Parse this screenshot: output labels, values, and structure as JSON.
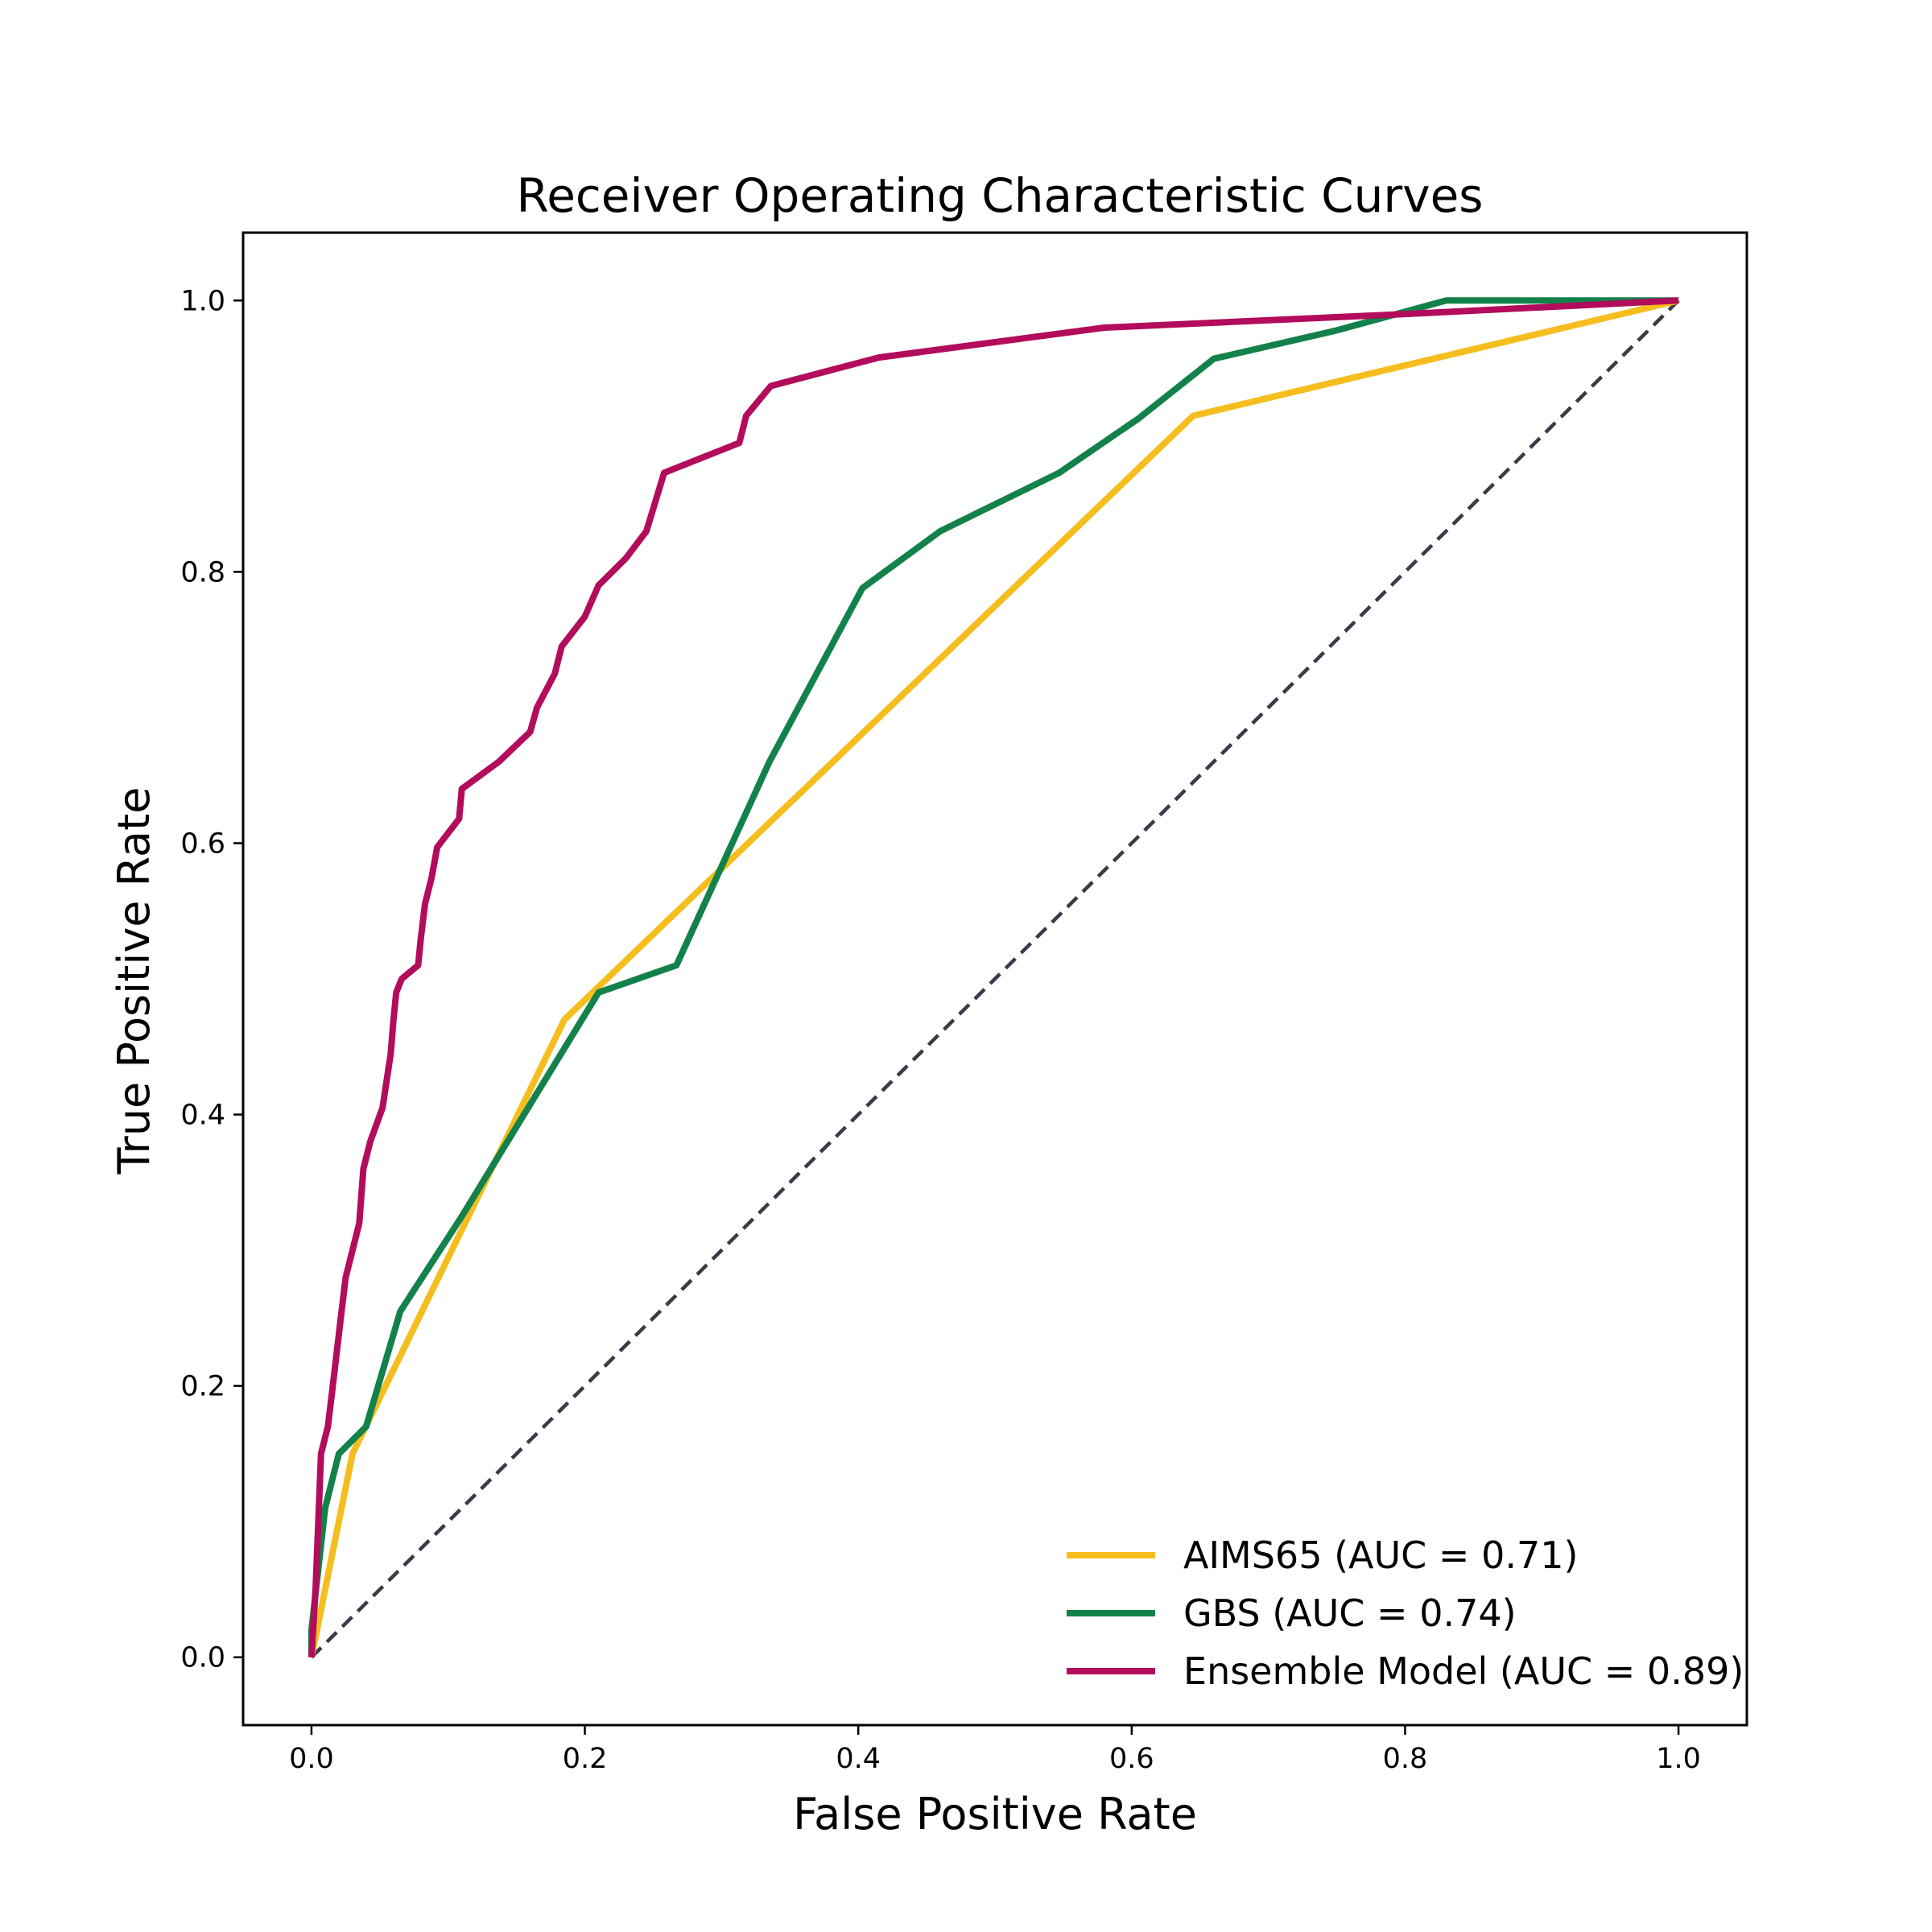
{
  "chart_data": {
    "type": "line",
    "title": "Receiver Operating Characteristic Curves",
    "xlabel": "False Positive Rate",
    "ylabel": "True Positive Rate",
    "xlim": [
      -0.05,
      1.05
    ],
    "ylim": [
      -0.05,
      1.05
    ],
    "xticks": [
      "0.0",
      "0.2",
      "0.4",
      "0.6",
      "0.8",
      "1.0"
    ],
    "yticks": [
      "0.0",
      "0.2",
      "0.4",
      "0.6",
      "0.8",
      "1.0"
    ],
    "grid": false,
    "legend_position": "lower-right",
    "diagonal": {
      "x": [
        0,
        1
      ],
      "y": [
        0,
        1
      ],
      "color": "#3a3a48",
      "style": "dashed"
    },
    "series": [
      {
        "name": "AIMS65 (AUC = 0.71)",
        "color": "#f5be1e",
        "x": [
          0.0,
          0.03,
          0.185,
          0.645,
          1.0
        ],
        "y": [
          0.0,
          0.15,
          0.47,
          0.915,
          1.0
        ]
      },
      {
        "name": "GBS (AUC = 0.74)",
        "color": "#13814a",
        "x": [
          0.0,
          0.0,
          0.01,
          0.02,
          0.04,
          0.065,
          0.11,
          0.21,
          0.267,
          0.335,
          0.403,
          0.46,
          0.547,
          0.605,
          0.66,
          0.75,
          0.83,
          1.0
        ],
        "y": [
          0.0,
          0.02,
          0.11,
          0.15,
          0.17,
          0.255,
          0.325,
          0.49,
          0.51,
          0.66,
          0.788,
          0.83,
          0.873,
          0.913,
          0.957,
          0.978,
          1.0,
          1.0
        ]
      },
      {
        "name": "Ensemble Model (AUC = 0.89)",
        "color": "#b30c5c",
        "x": [
          0.0,
          0.003,
          0.007,
          0.012,
          0.015,
          0.022,
          0.025,
          0.03,
          0.035,
          0.038,
          0.043,
          0.052,
          0.058,
          0.06,
          0.062,
          0.066,
          0.078,
          0.08,
          0.083,
          0.088,
          0.092,
          0.108,
          0.11,
          0.137,
          0.16,
          0.165,
          0.178,
          0.183,
          0.2,
          0.21,
          0.23,
          0.245,
          0.258,
          0.313,
          0.318,
          0.336,
          0.415,
          0.58,
          0.8,
          1.0
        ],
        "y": [
          0.0,
          0.05,
          0.15,
          0.17,
          0.195,
          0.255,
          0.28,
          0.3,
          0.32,
          0.36,
          0.38,
          0.405,
          0.445,
          0.47,
          0.49,
          0.5,
          0.51,
          0.53,
          0.555,
          0.575,
          0.597,
          0.618,
          0.64,
          0.66,
          0.682,
          0.7,
          0.725,
          0.745,
          0.767,
          0.79,
          0.81,
          0.83,
          0.873,
          0.895,
          0.915,
          0.937,
          0.958,
          0.98,
          0.99,
          1.0
        ]
      }
    ]
  }
}
